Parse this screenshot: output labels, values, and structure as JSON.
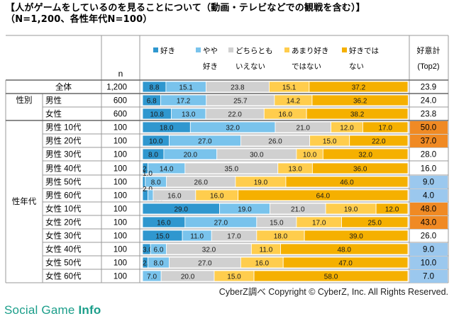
{
  "title_line1": "【人がゲームをしているのを見ることについて（動画・テレビなどでの観戦を含む）】",
  "title_line2": "（N=1,200、各性年代N=100）",
  "n_header": "n",
  "score_header": [
    "好意計",
    "(Top2)"
  ],
  "group_labels": {
    "gender": "性別",
    "age": "性年代"
  },
  "legend": [
    {
      "lines": [
        "好き",
        ""
      ],
      "color": "#2f97cf"
    },
    {
      "lines": [
        "やや",
        "好き"
      ],
      "color": "#79c3ec"
    },
    {
      "lines": [
        "どちらとも",
        "いえない"
      ],
      "color": "#d0d0d0"
    },
    {
      "lines": [
        "あまり好き",
        "ではない"
      ],
      "color": "#ffcd4d"
    },
    {
      "lines": [
        "好きでは",
        "ない"
      ],
      "color": "#f5b000"
    }
  ],
  "highlight": {
    "high": "#f08a24",
    "low": "#9bc8ee"
  },
  "chart_data": {
    "type": "bar",
    "stacked": true,
    "percent": true,
    "series_names": [
      "好き",
      "やや好き",
      "どちらともいえない",
      "あまり好きではない",
      "好きではない"
    ],
    "rows": [
      {
        "label": "全体",
        "n": "1,200",
        "values": [
          8.8,
          15.1,
          23.8,
          15.1,
          37.2
        ],
        "top2": "23.9",
        "hl": ""
      },
      {
        "label": "男性",
        "n": "600",
        "values": [
          6.8,
          17.2,
          25.7,
          14.2,
          36.2
        ],
        "top2": "24.0",
        "hl": ""
      },
      {
        "label": "女性",
        "n": "600",
        "values": [
          10.8,
          13.0,
          22.0,
          16.0,
          38.2
        ],
        "top2": "23.8",
        "hl": ""
      },
      {
        "label": "男性 10代",
        "n": "100",
        "values": [
          18.0,
          32.0,
          21.0,
          12.0,
          17.0
        ],
        "top2": "50.0",
        "hl": "high"
      },
      {
        "label": "男性 20代",
        "n": "100",
        "values": [
          10.0,
          27.0,
          26.0,
          15.0,
          22.0
        ],
        "top2": "37.0",
        "hl": "high"
      },
      {
        "label": "男性 30代",
        "n": "100",
        "values": [
          8.0,
          20.0,
          30.0,
          10.0,
          32.0
        ],
        "top2": "28.0",
        "hl": ""
      },
      {
        "label": "男性 40代",
        "n": "100",
        "values": [
          2.0,
          14.0,
          35.0,
          13.0,
          36.0
        ],
        "top2": "16.0",
        "hl": ""
      },
      {
        "label": "男性 50代",
        "n": "100",
        "values": [
          1.0,
          8.0,
          26.0,
          19.0,
          46.0
        ],
        "top2": "9.0",
        "hl": "low"
      },
      {
        "label": "男性 60代",
        "n": "100",
        "values": [
          2.0,
          2.0,
          16.0,
          16.0,
          64.0
        ],
        "top2": "4.0",
        "hl": "low"
      },
      {
        "label": "女性 10代",
        "n": "100",
        "values": [
          29.0,
          19.0,
          21.0,
          19.0,
          12.0
        ],
        "top2": "48.0",
        "hl": "high"
      },
      {
        "label": "女性 20代",
        "n": "100",
        "values": [
          16.0,
          27.0,
          15.0,
          17.0,
          25.0
        ],
        "top2": "43.0",
        "hl": "high"
      },
      {
        "label": "女性 30代",
        "n": "100",
        "values": [
          15.0,
          11.0,
          17.0,
          18.0,
          39.0
        ],
        "top2": "26.0",
        "hl": ""
      },
      {
        "label": "女性 40代",
        "n": "100",
        "values": [
          3.0,
          6.0,
          32.0,
          11.0,
          48.0
        ],
        "top2": "9.0",
        "hl": "low"
      },
      {
        "label": "女性 50代",
        "n": "100",
        "values": [
          2.0,
          8.0,
          27.0,
          16.0,
          47.0
        ],
        "top2": "10.0",
        "hl": "low"
      },
      {
        "label": "女性 60代",
        "n": "100",
        "values": [
          0.0,
          7.0,
          20.0,
          15.0,
          58.0
        ],
        "top2": "7.0",
        "hl": "low"
      }
    ],
    "value_labels": [
      [
        "8.8",
        "15.1",
        "23.8",
        "15.1",
        "37.2"
      ],
      [
        "6.8",
        "17.2",
        "25.7",
        "14.2",
        "36.2"
      ],
      [
        "10.8",
        "13.0",
        "22.0",
        "16.0",
        "38.2"
      ],
      [
        "18.0",
        "32.0",
        "21.0",
        "12.0",
        "17.0"
      ],
      [
        "10.0",
        "27.0",
        "26.0",
        "15.0",
        "22.0"
      ],
      [
        "8.0",
        "20.0",
        "30.0",
        "10.0",
        "32.0"
      ],
      [
        "2.0",
        "14.0",
        "35.0",
        "13.0",
        "36.0"
      ],
      [
        "1.0",
        "8.0",
        "26.0",
        "19.0",
        "46.0"
      ],
      [
        "2.0",
        "2.0",
        "16.0",
        "16.0",
        "64.0"
      ],
      [
        "29.0",
        "19.0",
        "21.0",
        "19.0",
        "12.0"
      ],
      [
        "16.0",
        "27.0",
        "15.0",
        "17.0",
        "25.0"
      ],
      [
        "15.0",
        "11.0",
        "17.0",
        "18.0",
        "39.0"
      ],
      [
        "3.0",
        "6.0",
        "32.0",
        "11.0",
        "48.0"
      ],
      [
        "2.0",
        "8.0",
        "27.0",
        "16.0",
        "47.0"
      ],
      [
        "0.0",
        "7.0",
        "20.0",
        "15.0",
        "58.0"
      ]
    ]
  },
  "copyright": "CyberZ調べ Copyright © CyberZ, Inc. All Rights Reserved.",
  "watermark": {
    "part1": "Social Game ",
    "part2": "Info"
  }
}
